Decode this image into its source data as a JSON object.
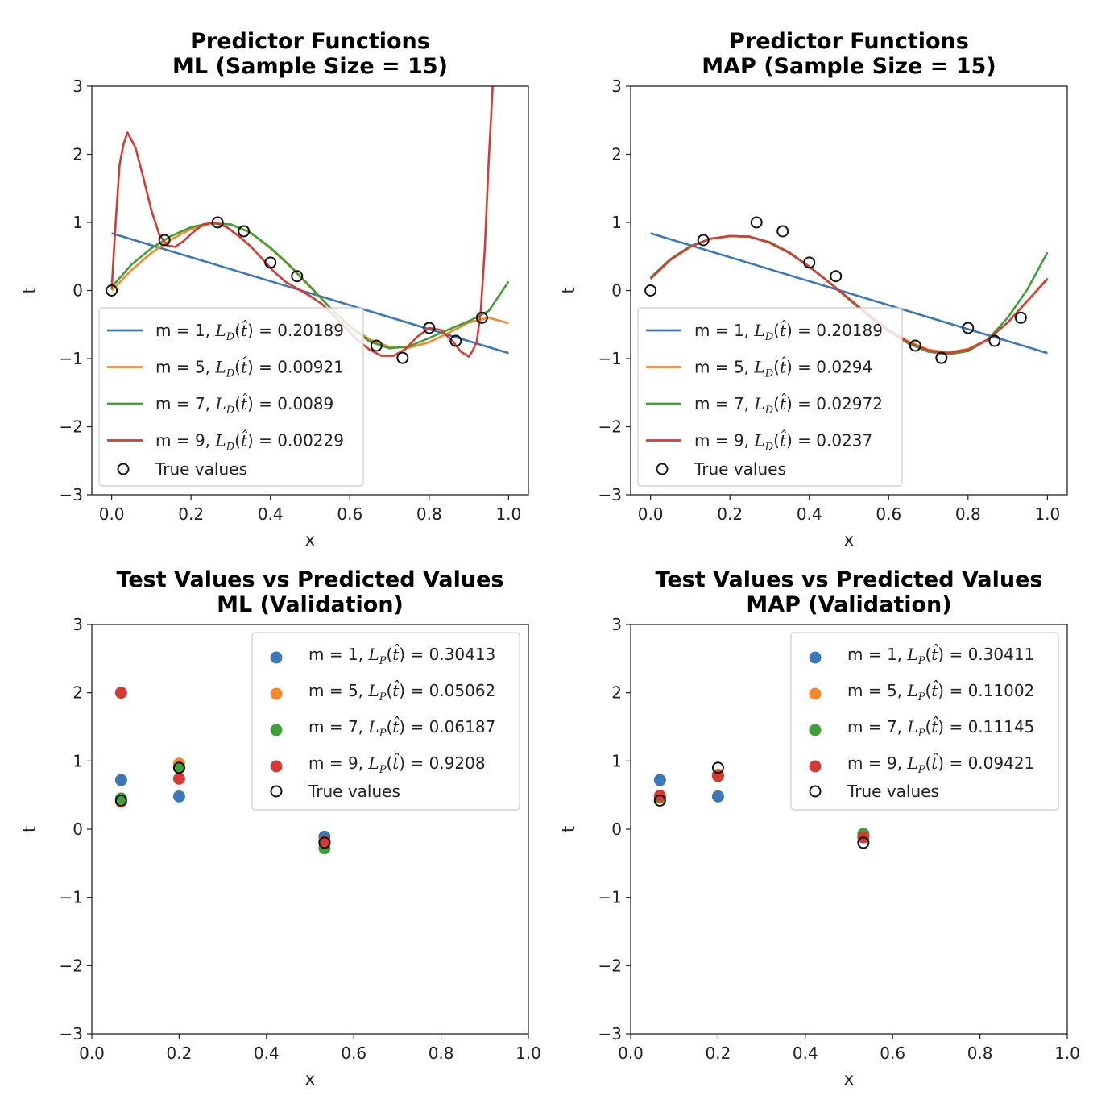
{
  "chart_data": [
    {
      "type": "line",
      "title": "Predictor Functions\nML (Sample Size = 15)",
      "xlabel": "x",
      "ylabel": "t",
      "xlim": [
        -0.05,
        1.05
      ],
      "ylim": [
        -3,
        3
      ],
      "xticks": [
        "0.0",
        "0.2",
        "0.4",
        "0.6",
        "0.8",
        "1.0"
      ],
      "yticks": [
        "−3",
        "−2",
        "−1",
        "0",
        "1",
        "2",
        "3"
      ],
      "legend_position": "lower-left",
      "loss_sub": "D",
      "series": [
        {
          "name": "m = 1, ",
          "loss": "0.20189",
          "color": "#3a78b8",
          "x": [
            0,
            1
          ],
          "y": [
            0.84,
            -0.92
          ]
        },
        {
          "name": "m = 5, ",
          "loss": "0.00921",
          "color": "#f5882a",
          "x": [
            0,
            0.05,
            0.1,
            0.15,
            0.2,
            0.25,
            0.3,
            0.35,
            0.4,
            0.45,
            0.5,
            0.55,
            0.6,
            0.65,
            0.7,
            0.75,
            0.8,
            0.85,
            0.9,
            0.95,
            1.0
          ],
          "y": [
            0.0,
            0.3,
            0.55,
            0.75,
            0.9,
            0.98,
            0.97,
            0.85,
            0.62,
            0.35,
            0.05,
            -0.25,
            -0.52,
            -0.72,
            -0.83,
            -0.84,
            -0.76,
            -0.62,
            -0.47,
            -0.4,
            -0.48
          ]
        },
        {
          "name": "m = 7, ",
          "loss": "0.0089",
          "color": "#3fa03a",
          "x": [
            0,
            0.05,
            0.1,
            0.15,
            0.2,
            0.25,
            0.3,
            0.35,
            0.4,
            0.45,
            0.5,
            0.55,
            0.6,
            0.65,
            0.7,
            0.75,
            0.8,
            0.85,
            0.9,
            0.95,
            1.0
          ],
          "y": [
            0.05,
            0.38,
            0.62,
            0.8,
            0.93,
            0.99,
            0.97,
            0.85,
            0.63,
            0.36,
            0.06,
            -0.25,
            -0.53,
            -0.75,
            -0.85,
            -0.82,
            -0.7,
            -0.57,
            -0.45,
            -0.3,
            0.13
          ]
        },
        {
          "name": "m = 9, ",
          "loss": "0.00229",
          "color": "#d23c34",
          "x": [
            0,
            0.01,
            0.02,
            0.03,
            0.04,
            0.06,
            0.08,
            0.1,
            0.12,
            0.14,
            0.16,
            0.18,
            0.2,
            0.23,
            0.26,
            0.29,
            0.32,
            0.35,
            0.38,
            0.41,
            0.44,
            0.47,
            0.5,
            0.53,
            0.56,
            0.59,
            0.62,
            0.65,
            0.68,
            0.71,
            0.74,
            0.77,
            0.8,
            0.83,
            0.86,
            0.88,
            0.9,
            0.91,
            0.92,
            0.93,
            0.94,
            0.95,
            0.96,
            0.965
          ],
          "y": [
            0.02,
            1.0,
            1.85,
            2.15,
            2.32,
            2.1,
            1.65,
            1.18,
            0.82,
            0.66,
            0.64,
            0.72,
            0.83,
            0.97,
            1.0,
            0.93,
            0.8,
            0.65,
            0.46,
            0.27,
            0.12,
            0.02,
            -0.08,
            -0.2,
            -0.37,
            -0.55,
            -0.73,
            -0.87,
            -0.96,
            -0.96,
            -0.86,
            -0.68,
            -0.55,
            -0.58,
            -0.75,
            -0.9,
            -0.97,
            -0.88,
            -0.75,
            -0.3,
            0.6,
            1.9,
            3.0,
            3.3
          ]
        }
      ],
      "true_values": {
        "name": "True values",
        "x": [
          0.0,
          0.133,
          0.267,
          0.333,
          0.4,
          0.467,
          0.667,
          0.733,
          0.8,
          0.867,
          0.933
        ],
        "y": [
          0.0,
          0.74,
          1.0,
          0.87,
          0.41,
          0.21,
          -0.81,
          -0.99,
          -0.55,
          -0.74,
          -0.4
        ]
      }
    },
    {
      "type": "line",
      "title": "Predictor Functions\nMAP (Sample Size = 15)",
      "xlabel": "x",
      "ylabel": "t",
      "xlim": [
        -0.05,
        1.05
      ],
      "ylim": [
        -3,
        3
      ],
      "xticks": [
        "0.0",
        "0.2",
        "0.4",
        "0.6",
        "0.8",
        "1.0"
      ],
      "yticks": [
        "−3",
        "−2",
        "−1",
        "0",
        "1",
        "2",
        "3"
      ],
      "legend_position": "lower-left",
      "loss_sub": "D",
      "series": [
        {
          "name": "m = 1, ",
          "loss": "0.20189",
          "color": "#3a78b8",
          "x": [
            0,
            1
          ],
          "y": [
            0.84,
            -0.92
          ]
        },
        {
          "name": "m = 5, ",
          "loss": "0.0294",
          "color": "#f5882a",
          "x": [
            0,
            0.05,
            0.1,
            0.15,
            0.2,
            0.25,
            0.3,
            0.35,
            0.4,
            0.45,
            0.5,
            0.55,
            0.6,
            0.65,
            0.7,
            0.75,
            0.8,
            0.85,
            0.9,
            0.95,
            1.0
          ],
          "y": [
            0.18,
            0.45,
            0.64,
            0.76,
            0.8,
            0.79,
            0.7,
            0.55,
            0.35,
            0.12,
            -0.12,
            -0.36,
            -0.58,
            -0.75,
            -0.87,
            -0.91,
            -0.86,
            -0.72,
            -0.47,
            -0.15,
            0.18
          ]
        },
        {
          "name": "m = 7, ",
          "loss": "0.02972",
          "color": "#3fa03a",
          "x": [
            0,
            0.05,
            0.1,
            0.15,
            0.2,
            0.25,
            0.3,
            0.35,
            0.4,
            0.45,
            0.5,
            0.55,
            0.6,
            0.65,
            0.7,
            0.75,
            0.8,
            0.85,
            0.9,
            0.95,
            1.0
          ],
          "y": [
            0.19,
            0.46,
            0.65,
            0.76,
            0.8,
            0.79,
            0.71,
            0.56,
            0.35,
            0.12,
            -0.13,
            -0.38,
            -0.6,
            -0.78,
            -0.9,
            -0.94,
            -0.89,
            -0.72,
            -0.4,
            0.02,
            0.56
          ]
        },
        {
          "name": "m = 9, ",
          "loss": "0.0237",
          "color": "#d23c34",
          "x": [
            0,
            0.05,
            0.1,
            0.15,
            0.2,
            0.25,
            0.3,
            0.35,
            0.4,
            0.45,
            0.5,
            0.55,
            0.6,
            0.65,
            0.7,
            0.75,
            0.8,
            0.85,
            0.9,
            0.95,
            1.0
          ],
          "y": [
            0.17,
            0.45,
            0.64,
            0.76,
            0.8,
            0.79,
            0.7,
            0.55,
            0.35,
            0.12,
            -0.12,
            -0.36,
            -0.58,
            -0.76,
            -0.88,
            -0.92,
            -0.87,
            -0.72,
            -0.47,
            -0.15,
            0.17
          ]
        }
      ],
      "true_values": {
        "name": "True values",
        "x": [
          0.0,
          0.133,
          0.267,
          0.333,
          0.4,
          0.467,
          0.667,
          0.733,
          0.8,
          0.867,
          0.933
        ],
        "y": [
          0.0,
          0.74,
          1.0,
          0.87,
          0.41,
          0.21,
          -0.81,
          -0.99,
          -0.55,
          -0.74,
          -0.4
        ]
      }
    },
    {
      "type": "scatter",
      "title": "Test Values vs Predicted Values\nML (Validation)",
      "xlabel": "x",
      "ylabel": "t",
      "xlim": [
        0,
        1
      ],
      "ylim": [
        -3,
        3
      ],
      "xticks": [
        "0.0",
        "0.2",
        "0.4",
        "0.6",
        "0.8",
        "1.0"
      ],
      "yticks": [
        "−3",
        "−2",
        "−1",
        "0",
        "1",
        "2",
        "3"
      ],
      "legend_position": "upper-right",
      "loss_sub": "P",
      "x": [
        0.067,
        0.2,
        0.533
      ],
      "series": [
        {
          "name": "m = 1,  ",
          "loss": "0.30413",
          "color": "#3a78b8",
          "y": [
            0.72,
            0.48,
            -0.11
          ]
        },
        {
          "name": "m = 5,  ",
          "loss": "0.05062",
          "color": "#f5882a",
          "y": [
            0.4,
            0.96,
            -0.2
          ]
        },
        {
          "name": "m = 7,  ",
          "loss": "0.06187",
          "color": "#3fa03a",
          "y": [
            0.45,
            0.9,
            -0.28
          ]
        },
        {
          "name": "m = 9,  ",
          "loss": "0.9208",
          "color": "#d23c34",
          "y": [
            2.0,
            0.74,
            -0.18
          ]
        }
      ],
      "true_values": {
        "name": "True values",
        "y": [
          0.42,
          0.9,
          -0.2
        ]
      }
    },
    {
      "type": "scatter",
      "title": "Test Values vs Predicted Values\nMAP (Validation)",
      "xlabel": "x",
      "ylabel": "t",
      "xlim": [
        0,
        1
      ],
      "ylim": [
        -3,
        3
      ],
      "xticks": [
        "0.0",
        "0.2",
        "0.4",
        "0.6",
        "0.8",
        "1.0"
      ],
      "yticks": [
        "−3",
        "−2",
        "−1",
        "0",
        "1",
        "2",
        "3"
      ],
      "legend_position": "upper-right",
      "loss_sub": "P",
      "x": [
        0.067,
        0.2,
        0.533
      ],
      "series": [
        {
          "name": "m = 1,  ",
          "loss": "0.30411",
          "color": "#3a78b8",
          "y": [
            0.72,
            0.48,
            -0.09
          ]
        },
        {
          "name": "m = 5,  ",
          "loss": "0.11002",
          "color": "#f5882a",
          "y": [
            0.46,
            0.8,
            -0.1
          ]
        },
        {
          "name": "m = 7,  ",
          "loss": "0.11145",
          "color": "#3fa03a",
          "y": [
            0.47,
            0.79,
            -0.07
          ]
        },
        {
          "name": "m = 9,  ",
          "loss": "0.09421",
          "color": "#d23c34",
          "y": [
            0.49,
            0.78,
            -0.12
          ]
        }
      ],
      "true_values": {
        "name": "True values",
        "y": [
          0.42,
          0.9,
          -0.2
        ]
      }
    }
  ]
}
